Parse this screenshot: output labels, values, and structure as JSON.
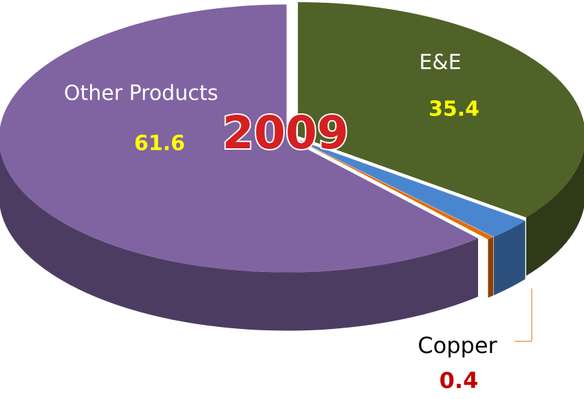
{
  "chart_data": {
    "type": "pie",
    "title": "2009",
    "categories": [
      "E&E",
      null,
      "Copper",
      "Other Products"
    ],
    "values": [
      35.4,
      2.6,
      0.4,
      61.6
    ],
    "colors": [
      "#4f6228",
      "#4a86d0",
      "#e46c0a",
      "#8064a2"
    ]
  }
}
